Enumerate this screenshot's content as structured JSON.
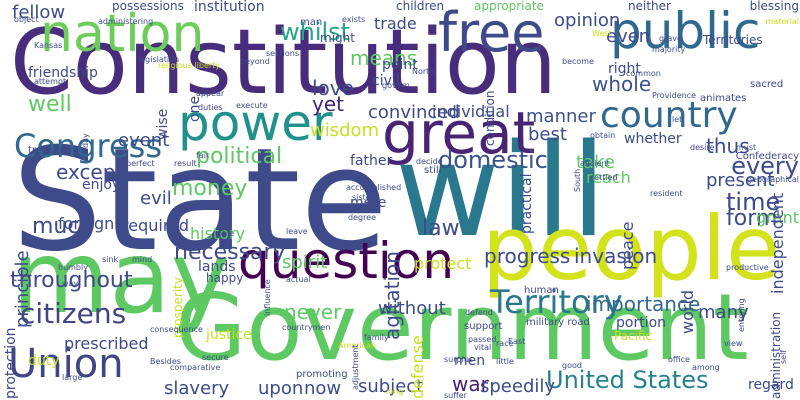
{
  "palette": [
    "#440154",
    "#3b528b",
    "#21918c",
    "#5ec962",
    "#fde725",
    "#c8e020"
  ],
  "words": [
    {
      "text": "State",
      "color": "#3e4a89",
      "rotated": false
    },
    {
      "text": "Constitution",
      "color": "#472d7b",
      "rotated": false
    },
    {
      "text": "will",
      "color": "#2a788e",
      "rotated": false
    },
    {
      "text": "people",
      "color": "#d2e21b",
      "rotated": false
    },
    {
      "text": "Government",
      "color": "#5ec962",
      "rotated": false
    },
    {
      "text": "may",
      "color": "#5ec962",
      "rotated": false
    },
    {
      "text": "great",
      "color": "#482475",
      "rotated": false
    },
    {
      "text": "nation",
      "color": "#6ccd5a",
      "rotated": false
    },
    {
      "text": "free",
      "color": "#3e4a89",
      "rotated": false
    },
    {
      "text": "public",
      "color": "#31688e",
      "rotated": false
    },
    {
      "text": "power",
      "color": "#21918c",
      "rotated": false
    },
    {
      "text": "question",
      "color": "#440154",
      "rotated": false
    },
    {
      "text": "Union",
      "color": "#414487",
      "rotated": false
    },
    {
      "text": "country",
      "color": "#31688e",
      "rotated": false
    },
    {
      "text": "Congress",
      "color": "#31688e",
      "rotated": false
    },
    {
      "text": "Territory",
      "color": "#2a788e",
      "rotated": false
    },
    {
      "text": "United States",
      "color": "#26828e",
      "rotated": false
    },
    {
      "text": "citizens",
      "color": "#414487",
      "rotated": false
    },
    {
      "text": "domestic",
      "color": "#3b528b",
      "rotated": false
    },
    {
      "text": "whilst",
      "color": "#22a884",
      "rotated": false
    },
    {
      "text": "time",
      "color": "#3e4a89",
      "rotated": false
    },
    {
      "text": "opinion",
      "color": "#3e4a89",
      "rotated": false
    },
    {
      "text": "political",
      "color": "#5ec962",
      "rotated": false
    },
    {
      "text": "money",
      "color": "#5ec962",
      "rotated": false
    },
    {
      "text": "necessary",
      "color": "#3e4a89",
      "rotated": false
    },
    {
      "text": "importance",
      "color": "#31688e",
      "rotated": false
    },
    {
      "text": "never",
      "color": "#5ec962",
      "rotated": false
    },
    {
      "text": "war",
      "color": "#481f70",
      "rotated": false
    },
    {
      "text": "well",
      "color": "#5ec962",
      "rotated": false
    },
    {
      "text": "fellow",
      "color": "#3e4a89",
      "rotated": false
    },
    {
      "text": "means",
      "color": "#5ec962",
      "rotated": false
    },
    {
      "text": "yet",
      "color": "#482475",
      "rotated": false
    },
    {
      "text": "even",
      "color": "#3e4a89",
      "rotated": false
    },
    {
      "text": "whole",
      "color": "#3b528b",
      "rotated": false
    },
    {
      "text": "manner",
      "color": "#3b528b",
      "rotated": false
    },
    {
      "text": "best",
      "color": "#3e4a89",
      "rotated": false
    },
    {
      "text": "thus",
      "color": "#3e4a89",
      "rotated": false
    },
    {
      "text": "every",
      "color": "#3e4a89",
      "rotated": false
    },
    {
      "text": "present",
      "color": "#3e4a89",
      "rotated": false
    },
    {
      "text": "take",
      "color": "#5ec962",
      "rotated": false
    },
    {
      "text": "except",
      "color": "#3e4a89",
      "rotated": false
    },
    {
      "text": "much",
      "color": "#3e4a89",
      "rotated": false
    },
    {
      "text": "event",
      "color": "#3e4a89",
      "rotated": false
    },
    {
      "text": "love",
      "color": "#3e4a89",
      "rotated": false
    },
    {
      "text": "wisdom",
      "color": "#c8e020",
      "rotated": false
    },
    {
      "text": "trade",
      "color": "#3e4a89",
      "rotated": false
    },
    {
      "text": "law",
      "color": "#3e4a89",
      "rotated": false
    },
    {
      "text": "progress",
      "color": "#3e4a89",
      "rotated": false
    },
    {
      "text": "invasion",
      "color": "#3e4a89",
      "rotated": false
    },
    {
      "text": "throughout",
      "color": "#3e4a89",
      "rotated": false
    },
    {
      "text": "spirit",
      "color": "#5ec962",
      "rotated": false
    },
    {
      "text": "protect",
      "color": "#c8e020",
      "rotated": false
    },
    {
      "text": "now",
      "color": "#3e4a89",
      "rotated": false
    },
    {
      "text": "subject",
      "color": "#3e4a89",
      "rotated": false
    },
    {
      "text": "without",
      "color": "#3e4a89",
      "rotated": false
    },
    {
      "text": "slavery",
      "color": "#3e4a89",
      "rotated": false
    },
    {
      "text": "upon",
      "color": "#3e4a89",
      "rotated": false
    },
    {
      "text": "many",
      "color": "#3e4a89",
      "rotated": false
    },
    {
      "text": "form",
      "color": "#3e4a89",
      "rotated": false
    },
    {
      "text": "grant",
      "color": "#5ec962",
      "rotated": false
    },
    {
      "text": "convinced",
      "color": "#3e4a89",
      "rotated": false
    },
    {
      "text": "individual",
      "color": "#3e4a89",
      "rotated": false
    },
    {
      "text": "whether",
      "color": "#3e4a89",
      "rotated": false
    },
    {
      "text": "Territories",
      "color": "#3e4a89",
      "rotated": false
    },
    {
      "text": "right",
      "color": "#3e4a89",
      "rotated": false
    },
    {
      "text": "civil",
      "color": "#3e4a89",
      "rotated": false
    },
    {
      "text": "point",
      "color": "#3e4a89",
      "rotated": false
    },
    {
      "text": "might",
      "color": "#3e4a89",
      "rotated": false
    },
    {
      "text": "children",
      "color": "#3e4a89",
      "rotated": false
    },
    {
      "text": "possessions",
      "color": "#3e4a89",
      "rotated": false
    },
    {
      "text": "institution",
      "color": "#3e4a89",
      "rotated": false
    },
    {
      "text": "neither",
      "color": "#3e4a89",
      "rotated": false
    },
    {
      "text": "blessing",
      "color": "#3e4a89",
      "rotated": false
    },
    {
      "text": "appropriate",
      "color": "#5ec962",
      "rotated": false
    },
    {
      "text": "man",
      "color": "#3e4a89",
      "rotated": false
    },
    {
      "text": "father",
      "color": "#3e4a89",
      "rotated": false
    },
    {
      "text": "mere",
      "color": "#3e4a89",
      "rotated": false
    },
    {
      "text": "reach",
      "color": "#5ec962",
      "rotated": false
    },
    {
      "text": "enjoy",
      "color": "#3e4a89",
      "rotated": false
    },
    {
      "text": "foreign",
      "color": "#3e4a89",
      "rotated": false
    },
    {
      "text": "required",
      "color": "#3e4a89",
      "rotated": false
    },
    {
      "text": "evil",
      "color": "#3e4a89",
      "rotated": false
    },
    {
      "text": "history",
      "color": "#5ec962",
      "rotated": false
    },
    {
      "text": "lands",
      "color": "#3e4a89",
      "rotated": false
    },
    {
      "text": "happy",
      "color": "#3e4a89",
      "rotated": false
    },
    {
      "text": "justice",
      "color": "#c8e020",
      "rotated": false
    },
    {
      "text": "prescribed",
      "color": "#3e4a89",
      "rotated": false
    },
    {
      "text": "duty",
      "color": "#c8e020",
      "rotated": false
    },
    {
      "text": "men",
      "color": "#3e4a89",
      "rotated": false
    },
    {
      "text": "speedily",
      "color": "#3e4a89",
      "rotated": false
    },
    {
      "text": "regard",
      "color": "#3e4a89",
      "rotated": false
    },
    {
      "text": "portion",
      "color": "#3e4a89",
      "rotated": false
    },
    {
      "text": "Pacific",
      "color": "#c8e020",
      "rotated": false
    },
    {
      "text": "principle",
      "color": "#3e4a89",
      "rotated": true
    },
    {
      "text": "protection",
      "color": "#3e4a89",
      "rotated": true
    },
    {
      "text": "peace",
      "color": "#3e4a89",
      "rotated": true
    },
    {
      "text": "agitation",
      "color": "#3e4a89",
      "rotated": true
    },
    {
      "text": "independent",
      "color": "#3e4a89",
      "rotated": true
    },
    {
      "text": "administration",
      "color": "#3e4a89",
      "rotated": true
    },
    {
      "text": "condition",
      "color": "#3e4a89",
      "rotated": true
    },
    {
      "text": "practical",
      "color": "#3e4a89",
      "rotated": true
    },
    {
      "text": "prosperity",
      "color": "#c8e020",
      "rotated": true
    },
    {
      "text": "defense",
      "color": "#c8e020",
      "rotated": true
    },
    {
      "text": "wise",
      "color": "#3e4a89",
      "rotated": true
    },
    {
      "text": "one",
      "color": "#3e4a89",
      "rotated": true
    },
    {
      "text": "world",
      "color": "#3e4a89",
      "rotated": true
    },
    {
      "text": "fair",
      "color": "#3e4a89",
      "rotated": false
    },
    {
      "text": "military road",
      "color": "#3e4a89",
      "rotated": false
    },
    {
      "text": "religious liberty",
      "color": "#c8e020",
      "rotated": false
    },
    {
      "text": "Kansas",
      "color": "#3e4a89",
      "rotated": false
    },
    {
      "text": "friendship",
      "color": "#3e4a89",
      "rotated": false
    },
    {
      "text": "attempt",
      "color": "#3e4a89",
      "rotated": false
    },
    {
      "text": "duties",
      "color": "#3e4a89",
      "rotated": false
    },
    {
      "text": "execute",
      "color": "#3e4a89",
      "rotated": false
    },
    {
      "text": "accomplished",
      "color": "#3e4a89",
      "rotated": false
    },
    {
      "text": "sister",
      "color": "#3e4a89",
      "rotated": false
    },
    {
      "text": "still",
      "color": "#3e4a89",
      "rotated": false
    },
    {
      "text": "decide",
      "color": "#3e4a89",
      "rotated": false
    },
    {
      "text": "ancient",
      "color": "#3e4a89",
      "rotated": false
    },
    {
      "text": "settled",
      "color": "#3e4a89",
      "rotated": false
    },
    {
      "text": "resident",
      "color": "#3e4a89",
      "rotated": false
    },
    {
      "text": "productive",
      "color": "#3e4a89",
      "rotated": false
    },
    {
      "text": "view",
      "color": "#3e4a89",
      "rotated": false
    },
    {
      "text": "office",
      "color": "#3e4a89",
      "rotated": false
    },
    {
      "text": "among",
      "color": "#3e4a89",
      "rotated": false
    },
    {
      "text": "vital",
      "color": "#3e4a89",
      "rotated": false
    },
    {
      "text": "surplus",
      "color": "#3e4a89",
      "rotated": false
    },
    {
      "text": "little",
      "color": "#3e4a89",
      "rotated": false
    },
    {
      "text": "race",
      "color": "#3e4a89",
      "rotated": false
    },
    {
      "text": "passed",
      "color": "#3e4a89",
      "rotated": false
    },
    {
      "text": "human",
      "color": "#3e4a89",
      "rotated": false
    },
    {
      "text": "support",
      "color": "#3e4a89",
      "rotated": false
    },
    {
      "text": "consequence",
      "color": "#3e4a89",
      "rotated": false
    },
    {
      "text": "countrymen",
      "color": "#3e4a89",
      "rotated": false
    },
    {
      "text": "secure",
      "color": "#3e4a89",
      "rotated": false
    },
    {
      "text": "actual",
      "color": "#3e4a89",
      "rotated": false
    },
    {
      "text": "American",
      "color": "#c8e020",
      "rotated": false
    },
    {
      "text": "family",
      "color": "#3e4a89",
      "rotated": false
    },
    {
      "text": "large",
      "color": "#3e4a89",
      "rotated": false
    },
    {
      "text": "Besides",
      "color": "#3e4a89",
      "rotated": false
    },
    {
      "text": "comparative",
      "color": "#3e4a89",
      "rotated": false
    },
    {
      "text": "promoting",
      "color": "#3e4a89",
      "rotated": false
    },
    {
      "text": "long",
      "color": "#c8e020",
      "rotated": false
    },
    {
      "text": "suffer",
      "color": "#3e4a89",
      "rotated": false
    },
    {
      "text": "exists",
      "color": "#3e4a89",
      "rotated": false
    },
    {
      "text": "become",
      "color": "#3e4a89",
      "rotated": false
    },
    {
      "text": "Providence",
      "color": "#3e4a89",
      "rotated": false
    },
    {
      "text": "North",
      "color": "#3e4a89",
      "rotated": false
    },
    {
      "text": "East",
      "color": "#3e4a89",
      "rotated": false
    },
    {
      "text": "West",
      "color": "#c8e020",
      "rotated": false
    },
    {
      "text": "majority",
      "color": "#3e4a89",
      "rotated": false
    },
    {
      "text": "material",
      "color": "#c8e020",
      "rotated": false
    },
    {
      "text": "administering",
      "color": "#3e4a89",
      "rotated": false
    },
    {
      "text": "object",
      "color": "#3e4a89",
      "rotated": false
    },
    {
      "text": "desire",
      "color": "#3e4a89",
      "rotated": false
    },
    {
      "text": "must",
      "color": "#3e4a89",
      "rotated": false
    },
    {
      "text": "common",
      "color": "#3e4a89",
      "rotated": false
    },
    {
      "text": "result",
      "color": "#3e4a89",
      "rotated": false
    },
    {
      "text": "sink",
      "color": "#3e4a89",
      "rotated": false
    },
    {
      "text": "humbly",
      "color": "#3e4a89",
      "rotated": false
    },
    {
      "text": "way",
      "color": "#3e4a89",
      "rotated": false
    },
    {
      "text": "leave",
      "color": "#3e4a89",
      "rotated": false
    },
    {
      "text": "degree",
      "color": "#3e4a89",
      "rotated": false
    },
    {
      "text": "birth",
      "color": "#3e4a89",
      "rotated": false
    },
    {
      "text": "mind",
      "color": "#3e4a89",
      "rotated": false
    },
    {
      "text": "perfect",
      "color": "#3e4a89",
      "rotated": false
    },
    {
      "text": "treasury",
      "color": "#3e4a89",
      "rotated": false
    },
    {
      "text": "beyond",
      "color": "#3e4a89",
      "rotated": false
    },
    {
      "text": "govern",
      "color": "#3e4a89",
      "rotated": false
    },
    {
      "text": "sections",
      "color": "#3e4a89",
      "rotated": false
    },
    {
      "text": "legislation",
      "color": "#3e4a89",
      "rotated": false
    },
    {
      "text": "Confederacy",
      "color": "#3e4a89",
      "rotated": false
    },
    {
      "text": "geographical",
      "color": "#3e4a89",
      "rotated": false
    },
    {
      "text": "animates",
      "color": "#3e4a89",
      "rotated": false
    },
    {
      "text": "sacred",
      "color": "#3e4a89",
      "rotated": false
    },
    {
      "text": "influence",
      "color": "#3e4a89",
      "rotated": true
    },
    {
      "text": "entering",
      "color": "#3e4a89",
      "rotated": true
    },
    {
      "text": "adjustment",
      "color": "#3e4a89",
      "rotated": true
    },
    {
      "text": "self",
      "color": "#3e4a89",
      "rotated": true
    },
    {
      "text": "day",
      "color": "#3e4a89",
      "rotated": true
    },
    {
      "text": "South",
      "color": "#3e4a89",
      "rotated": true
    },
    {
      "text": "obtain",
      "color": "#3e4a89",
      "rotated": false
    },
    {
      "text": "let",
      "color": "#3e4a89",
      "rotated": false
    },
    {
      "text": "appear",
      "color": "#3e4a89",
      "rotated": false
    },
    {
      "text": "noble",
      "color": "#3e4a89",
      "rotated": false
    },
    {
      "text": "defend",
      "color": "#3e4a89",
      "rotated": false
    },
    {
      "text": "good",
      "color": "#3e4a89",
      "rotated": false
    },
    {
      "text": "grave",
      "color": "#3e4a89",
      "rotated": false
    }
  ]
}
